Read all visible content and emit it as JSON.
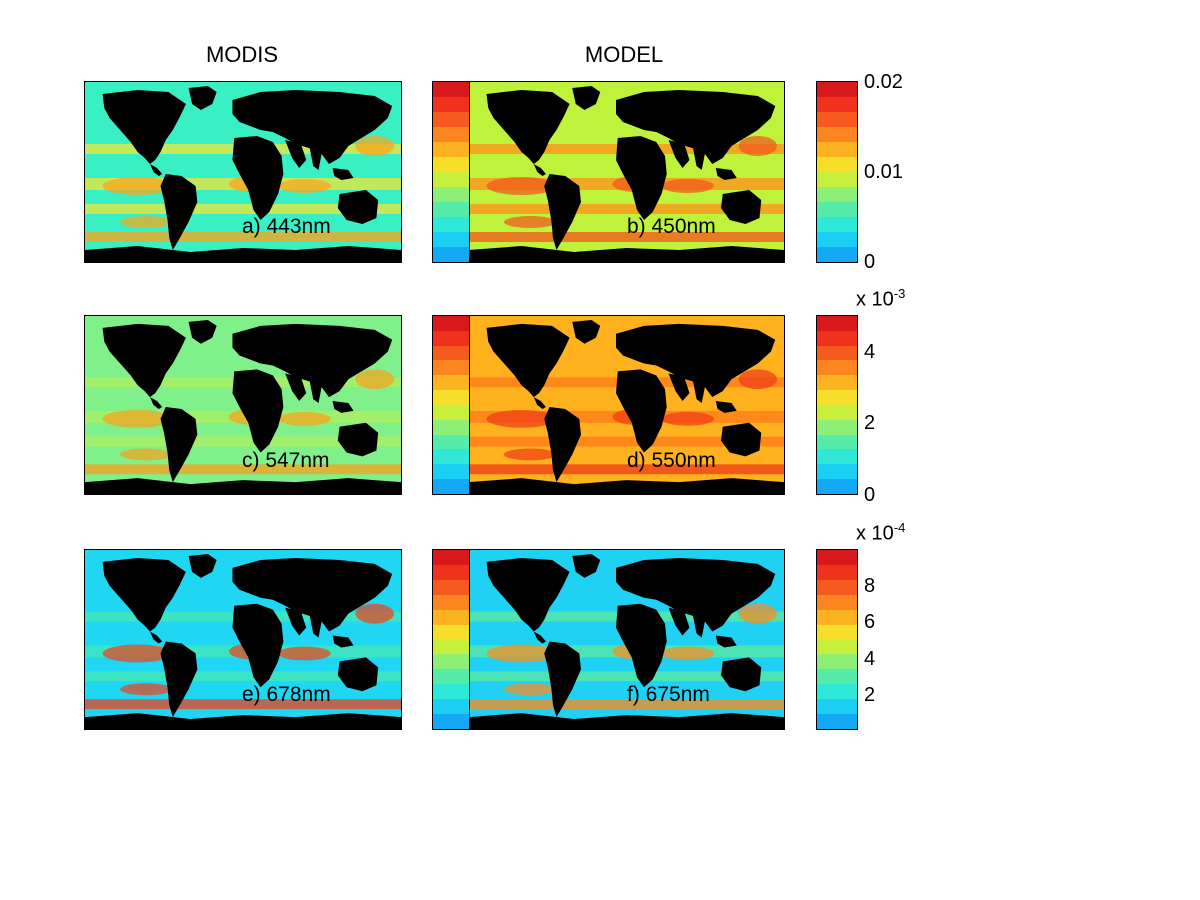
{
  "columns": {
    "left": "MODIS",
    "right": "MODEL"
  },
  "panels": [
    {
      "label": "a) 443nm",
      "source": "MODIS",
      "ocean_base": "#39f0c4",
      "blotch": "#f2e63a",
      "hot": "#ffa31a"
    },
    {
      "label": "b) 450nm",
      "source": "MODEL",
      "ocean_base": "#bff23a",
      "blotch": "#ff8f1a",
      "hot": "#f4541c"
    },
    {
      "label": "c) 547nm",
      "source": "MODIS",
      "ocean_base": "#7ff08a",
      "blotch": "#aef05e",
      "hot": "#f8a01c"
    },
    {
      "label": "d) 550nm",
      "source": "MODEL",
      "ocean_base": "#ffb21e",
      "blotch": "#ff7a1a",
      "hot": "#ee3a15"
    },
    {
      "label": "e) 678nm",
      "source": "MODIS",
      "ocean_base": "#1fd6f3",
      "blotch": "#45e8b4",
      "hot": "#f0401a"
    },
    {
      "label": "f) 675nm",
      "source": "MODEL",
      "ocean_base": "#1fd2f3",
      "blotch": "#5ce9a0",
      "hot": "#ff8a1a"
    }
  ],
  "colorbars": [
    {
      "ticks": [
        "0.02",
        "0.01",
        "0"
      ],
      "scale": ""
    },
    {
      "ticks": [
        "4",
        "2",
        "0"
      ],
      "scale": "x 10",
      "scale_exp": "-3"
    },
    {
      "ticks": [
        "8",
        "6",
        "4",
        "2"
      ],
      "scale": "x 10",
      "scale_exp": "-4"
    }
  ],
  "colormap": [
    "#d7191c",
    "#f0311c",
    "#f75a1e",
    "#fb861f",
    "#fdb21f",
    "#f5df2a",
    "#c7f03c",
    "#8df075",
    "#55ecab",
    "#2fe8d8",
    "#1ccff4",
    "#13a9f7"
  ],
  "land_color": "#000000"
}
